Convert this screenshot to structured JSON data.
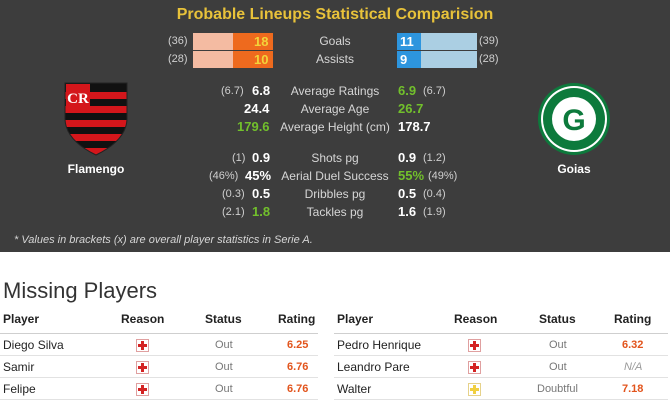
{
  "comparison": {
    "title": "Probable Lineups Statistical Comparision",
    "goals": {
      "label": "Goals",
      "home_total": "(36)",
      "home": "18",
      "away": "11",
      "away_total": "(39)"
    },
    "assists": {
      "label": "Assists",
      "home_total": "(28)",
      "home": "10",
      "away": "9",
      "away_total": "(28)"
    },
    "home_team": "Flamengo",
    "away_team": "Goias",
    "stats": [
      {
        "label": "Average Ratings",
        "home_br": "(6.7)",
        "home": "6.8",
        "away": "6.9",
        "away_br": "(6.7)"
      },
      {
        "label": "Average Age",
        "home_br": "",
        "home": "24.4",
        "away": "26.7",
        "away_br": ""
      },
      {
        "label": "Average Height (cm)",
        "home_br": "",
        "home": "179.6",
        "away": "178.7",
        "away_br": ""
      },
      {
        "label": "Shots pg",
        "home_br": "(1)",
        "home": "0.9",
        "away": "0.9",
        "away_br": "(1.2)"
      },
      {
        "label": "Aerial Duel Success",
        "home_br": "(46%)",
        "home": "45%",
        "away": "55%",
        "away_br": "(49%)"
      },
      {
        "label": "Dribbles pg",
        "home_br": "(0.3)",
        "home": "0.5",
        "away": "0.5",
        "away_br": "(0.4)"
      },
      {
        "label": "Tackles pg",
        "home_br": "(2.1)",
        "home": "1.8",
        "away": "1.6",
        "away_br": "(1.9)"
      }
    ],
    "footnote": "* Values in brackets (x) are overall player statistics in Serie A."
  },
  "missing": {
    "title": "Missing Players",
    "headers": {
      "player": "Player",
      "reason": "Reason",
      "status": "Status",
      "rating": "Rating"
    },
    "home": [
      {
        "player": "Diego Silva",
        "status": "Out",
        "rating": "6.25"
      },
      {
        "player": "Samir",
        "status": "Out",
        "rating": "6.76"
      },
      {
        "player": "Felipe",
        "status": "Out",
        "rating": "6.76"
      }
    ],
    "away": [
      {
        "player": "Pedro Henrique",
        "status": "Out",
        "rating": "6.32"
      },
      {
        "player": "Leandro Pare",
        "status": "Out",
        "rating": "N/A"
      },
      {
        "player": "Walter",
        "status": "Doubtful",
        "rating": "7.18"
      }
    ]
  }
}
